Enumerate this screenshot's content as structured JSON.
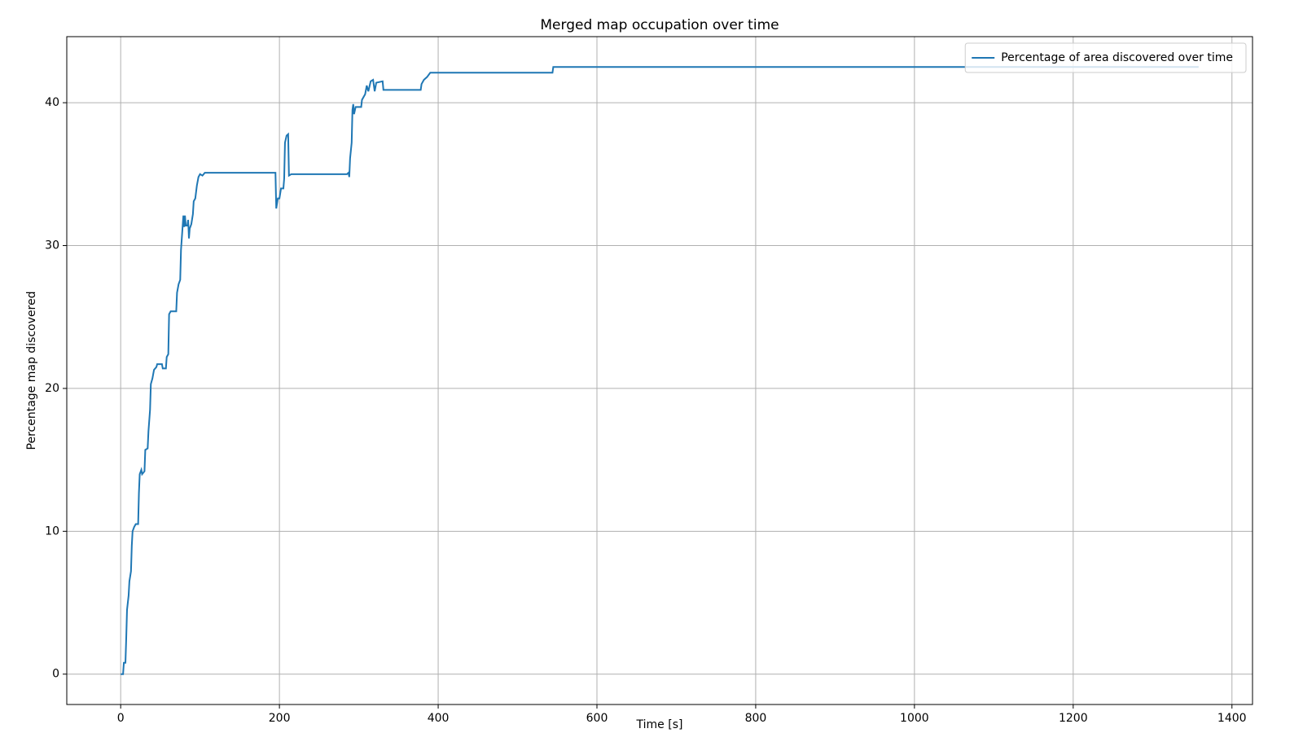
{
  "chart_data": {
    "type": "line",
    "title": "Merged map occupation over time",
    "x_label": "Time [s]",
    "y_label": "Percentage map discovered",
    "x": [
      0,
      3,
      4,
      6,
      7,
      8,
      10,
      11,
      13,
      14,
      15,
      17,
      19,
      22,
      23,
      24,
      26,
      27,
      30,
      31,
      34,
      35,
      37,
      38,
      40,
      42,
      45,
      46,
      52,
      53,
      57,
      58,
      60,
      61,
      63,
      70,
      71,
      73,
      75,
      76,
      78,
      79,
      80,
      81,
      82,
      84,
      85,
      86,
      87,
      89,
      91,
      92,
      94,
      96,
      98,
      100,
      103,
      106,
      195,
      196,
      198,
      200,
      202,
      205,
      206,
      207,
      209,
      211,
      212,
      215,
      285,
      287,
      288,
      289,
      291,
      292,
      293,
      294,
      296,
      303,
      304,
      308,
      310,
      312,
      315,
      318,
      320,
      322,
      330,
      331,
      378,
      379,
      382,
      386,
      390,
      544,
      545,
      1358
    ],
    "series": [
      {
        "name": "Percentage of area discovered over time",
        "color": "#1f77b4",
        "values": [
          0,
          0,
          0.8,
          0.8,
          2.5,
          4.5,
          5.5,
          6.5,
          7.2,
          9,
          10,
          10.3,
          10.5,
          10.5,
          12.7,
          14,
          14.3,
          14,
          14.2,
          15.7,
          15.8,
          17,
          18.5,
          20.3,
          20.7,
          21.3,
          21.5,
          21.7,
          21.7,
          21.4,
          21.4,
          22.2,
          22.4,
          25.2,
          25.4,
          25.4,
          26.7,
          27.3,
          27.6,
          29.7,
          31.3,
          32.1,
          31.3,
          32.1,
          31.4,
          31.4,
          31.8,
          30.5,
          31.2,
          31.5,
          32.2,
          33.1,
          33.3,
          34.2,
          34.8,
          35.0,
          34.9,
          35.1,
          35.1,
          32.6,
          33.3,
          33.3,
          34,
          34,
          34.7,
          37.2,
          37.7,
          37.8,
          34.9,
          35.0,
          35.0,
          35.1,
          34.8,
          36.1,
          37.2,
          39.5,
          39.9,
          39.2,
          39.7,
          39.7,
          40.2,
          40.6,
          41.2,
          40.8,
          41.5,
          41.6,
          40.8,
          41.4,
          41.5,
          40.9,
          40.9,
          41.3,
          41.6,
          41.8,
          42.1,
          42.1,
          42.5,
          42.5
        ]
      }
    ],
    "xlim": [
      -67.9,
      1425.9
    ],
    "ylim": [
      -2.125,
      44.625
    ],
    "xticks": [
      0,
      200,
      400,
      600,
      800,
      1000,
      1200,
      1400
    ],
    "yticks": [
      0,
      10,
      20,
      30,
      40
    ],
    "grid": true,
    "legend": "upper right"
  }
}
